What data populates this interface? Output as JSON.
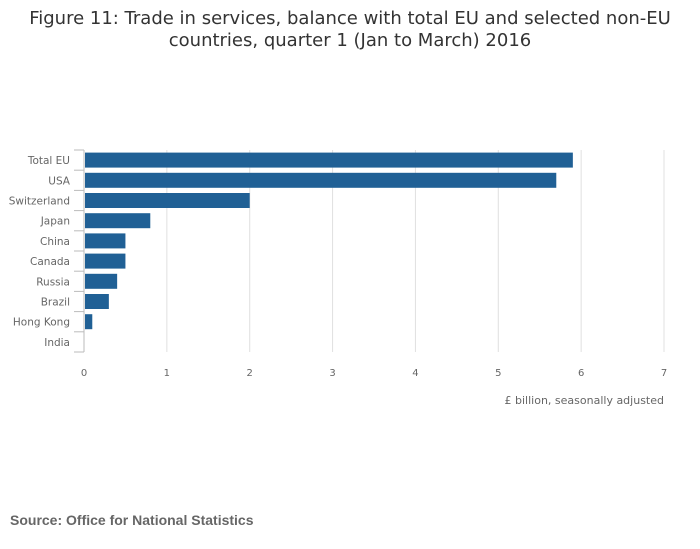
{
  "title_line1": "Figure 11: Trade in services, balance with total EU and selected non-EU",
  "title_line2": "countries, quarter 1 (Jan to March) 2016",
  "source": "Source: Office for National Statistics",
  "colors": {
    "bar": "#206095",
    "grid": "#e0e0e0",
    "axis": "#bbbbbb",
    "text": "#666666"
  },
  "chart_data": {
    "type": "bar",
    "orientation": "horizontal",
    "title": "Figure 11: Trade in services, balance with total EU and selected non-EU countries, quarter 1 (Jan to March) 2016",
    "categories": [
      "Total EU",
      "USA",
      "Switzerland",
      "Japan",
      "China",
      "Canada",
      "Russia",
      "Brazil",
      "Hong Kong",
      "India"
    ],
    "values": [
      5.9,
      5.7,
      2.0,
      0.8,
      0.5,
      0.5,
      0.4,
      0.3,
      0.1,
      0.0
    ],
    "xlabel": "£ billion, seasonally adjusted",
    "ylabel": "",
    "xlim": [
      0,
      7
    ],
    "xticks": [
      "0",
      "1",
      "2",
      "3",
      "4",
      "5",
      "6",
      "7"
    ],
    "grid": true,
    "legend": "none"
  }
}
